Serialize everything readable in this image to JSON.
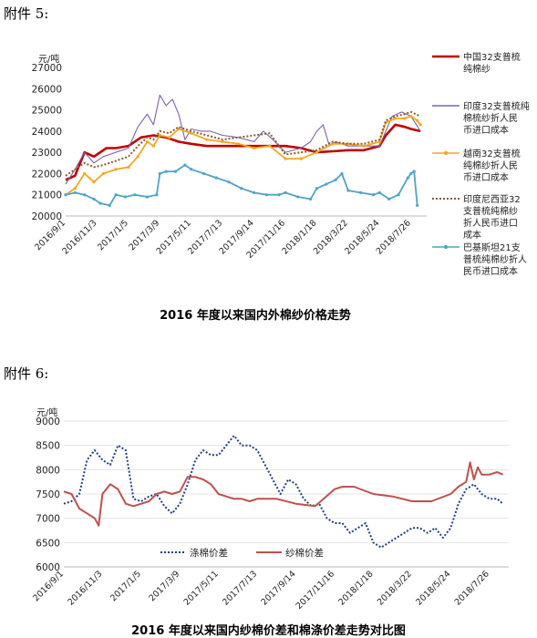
{
  "annex1_label": "附件 5:",
  "annex2_label": "附件 6:",
  "chart_data": [
    {
      "type": "line",
      "title": "2016 年度以来国内外棉纱价格走势",
      "ylabel": "元/吨",
      "ylim": [
        20000,
        27000
      ],
      "yticks": [
        "20000",
        "21000",
        "22000",
        "23000",
        "24000",
        "25000",
        "26000",
        "27000"
      ],
      "xticks": [
        "2016/9/1",
        "2016/11/3",
        "2017/1/5",
        "2017/3/9",
        "2017/5/11",
        "2017/7/13",
        "2017/9/14",
        "2017/11/16",
        "2018/1/18",
        "2018/3/22",
        "2018/5/24",
        "2018/7/26"
      ],
      "legend_position": "right",
      "series": [
        {
          "name": "中国32支普梳纯棉纱",
          "color": "#c00000",
          "style": "solid-thick",
          "x": [
            0,
            0.3,
            0.6,
            0.9,
            1.3,
            1.6,
            2.0,
            2.4,
            2.8,
            3.2,
            3.6,
            4.0,
            4.5,
            5.0,
            5.5,
            6.0,
            6.5,
            7.0,
            7.5,
            8.0,
            8.5,
            9.0,
            9.5,
            10.0,
            10.2,
            10.5,
            10.8,
            11.0,
            11.3
          ],
          "y": [
            21700,
            21900,
            23000,
            22800,
            23200,
            23200,
            23300,
            23700,
            23800,
            23700,
            23500,
            23400,
            23300,
            23300,
            23300,
            23300,
            23300,
            23300,
            23200,
            23000,
            23050,
            23100,
            23100,
            23300,
            23800,
            24300,
            24200,
            24100,
            24000
          ]
        },
        {
          "name": "印度32支普梳纯棉纱折人民币进口成本",
          "color": "#7b62b0",
          "style": "thin",
          "x": [
            0,
            0.3,
            0.6,
            0.9,
            1.2,
            1.6,
            2.0,
            2.3,
            2.6,
            2.8,
            3.0,
            3.2,
            3.4,
            3.6,
            3.8,
            4.0,
            4.3,
            4.6,
            5.0,
            5.5,
            6.0,
            6.3,
            6.6,
            7.0,
            7.5,
            7.8,
            8.0,
            8.2,
            8.4,
            8.6,
            8.8,
            9.0,
            9.5,
            10.0,
            10.2,
            10.4,
            10.7,
            11.0,
            11.3
          ],
          "y": [
            21500,
            22200,
            23000,
            22500,
            22800,
            23000,
            23200,
            24200,
            24800,
            24300,
            25700,
            25200,
            25500,
            24800,
            23600,
            24100,
            24000,
            24000,
            23800,
            23700,
            23500,
            24000,
            23600,
            23000,
            23200,
            23500,
            24000,
            24300,
            23300,
            23500,
            23400,
            23300,
            23300,
            23300,
            24000,
            24700,
            24900,
            24700,
            24000
          ]
        },
        {
          "name": "越南32支普梳纯棉纱折人民币进口成本",
          "color": "#f5a623",
          "style": "marker",
          "x": [
            0,
            0.3,
            0.6,
            0.9,
            1.2,
            1.6,
            2.0,
            2.3,
            2.6,
            2.8,
            3.0,
            3.3,
            3.6,
            4.0,
            4.5,
            5.0,
            5.5,
            6.0,
            6.5,
            7.0,
            7.5,
            8.0,
            8.5,
            9.0,
            9.5,
            10.0,
            10.2,
            10.5,
            10.8,
            11.0,
            11.2,
            11.3
          ],
          "y": [
            21000,
            21300,
            22000,
            21600,
            22000,
            22200,
            22300,
            22800,
            23500,
            23300,
            23800,
            23700,
            24100,
            23900,
            23600,
            23500,
            23400,
            23200,
            23300,
            22700,
            22700,
            23000,
            23400,
            23400,
            23300,
            23500,
            24400,
            24600,
            24600,
            24700,
            24500,
            24300
          ]
        },
        {
          "name": "印度尼西亚32支普梳纯棉纱折人民币进口成本",
          "color": "#8b5a2b",
          "style": "dotted",
          "x": [
            0,
            0.3,
            0.6,
            0.9,
            1.2,
            1.6,
            2.0,
            2.3,
            2.6,
            2.8,
            3.0,
            3.3,
            3.6,
            4.0,
            4.5,
            5.0,
            5.5,
            6.0,
            6.5,
            7.0,
            7.5,
            8.0,
            8.5,
            9.0,
            9.5,
            10.0,
            10.2,
            10.5,
            10.8,
            11.0,
            11.3
          ],
          "y": [
            21900,
            22200,
            22500,
            22300,
            22400,
            22600,
            22800,
            23300,
            23700,
            23600,
            24000,
            23900,
            24200,
            24000,
            23800,
            23600,
            23700,
            23800,
            23900,
            22900,
            23000,
            23100,
            23500,
            23400,
            23400,
            23600,
            24500,
            24700,
            24800,
            24900,
            24700
          ]
        },
        {
          "name": "巴基斯坦21支普梳纯棉纱折人民币进口成本",
          "color": "#4fa3c7",
          "style": "marker",
          "x": [
            0,
            0.3,
            0.6,
            0.9,
            1.1,
            1.4,
            1.6,
            1.9,
            2.2,
            2.6,
            2.9,
            3.0,
            3.2,
            3.5,
            3.8,
            4.0,
            4.4,
            4.8,
            5.2,
            5.6,
            6.0,
            6.4,
            6.8,
            7.0,
            7.4,
            7.8,
            8.0,
            8.3,
            8.6,
            8.8,
            9.0,
            9.4,
            9.8,
            10.0,
            10.3,
            10.6,
            10.9,
            11.0,
            11.1,
            11.2
          ],
          "y": [
            21000,
            21100,
            21000,
            20800,
            20600,
            20500,
            21000,
            20900,
            21000,
            20900,
            21000,
            22000,
            22100,
            22100,
            22400,
            22200,
            22000,
            21800,
            21600,
            21300,
            21100,
            21000,
            21000,
            21100,
            20900,
            20800,
            21300,
            21500,
            21700,
            22000,
            21200,
            21100,
            21000,
            21100,
            20800,
            21000,
            21800,
            22000,
            22100,
            20500
          ]
        }
      ]
    },
    {
      "type": "line",
      "title": "2016 年度以来国内纱棉价差和棉涤价差走势对比图",
      "ylabel": "元/吨",
      "ylim": [
        6000,
        9000
      ],
      "yticks": [
        "6000",
        "6500",
        "7000",
        "7500",
        "8000",
        "8500",
        "9000"
      ],
      "xticks": [
        "2016/9/1",
        "2016/11/3",
        "2017/1/5",
        "2017/3/9",
        "2017/5/11",
        "2017/7/13",
        "2017/9/14",
        "2017/11/16",
        "2018/1/18",
        "2018/3/22",
        "2018/5/24",
        "2018/7/26"
      ],
      "legend_position": "bottom-left",
      "series": [
        {
          "name": "涤棉价差",
          "color": "#1f3d8c",
          "style": "dotted",
          "x": [
            0,
            0.2,
            0.4,
            0.6,
            0.8,
            1.0,
            1.2,
            1.4,
            1.6,
            1.8,
            2.0,
            2.2,
            2.4,
            2.6,
            2.8,
            3.0,
            3.2,
            3.4,
            3.6,
            3.8,
            4.0,
            4.2,
            4.4,
            4.6,
            4.8,
            5.0,
            5.2,
            5.4,
            5.6,
            5.8,
            6.0,
            6.2,
            6.4,
            6.6,
            6.8,
            7.0,
            7.2,
            7.4,
            7.6,
            7.8,
            8.0,
            8.2,
            8.4,
            8.6,
            8.8,
            9.0,
            9.2,
            9.4,
            9.6,
            9.8,
            10.0,
            10.2,
            10.4,
            10.6,
            10.8,
            11.0,
            11.2,
            11.35
          ],
          "y": [
            7300,
            7350,
            7500,
            8200,
            8400,
            8200,
            8100,
            8500,
            8400,
            7400,
            7350,
            7450,
            7500,
            7250,
            7100,
            7300,
            7700,
            8200,
            8400,
            8300,
            8300,
            8500,
            8700,
            8500,
            8500,
            8400,
            8100,
            7800,
            7500,
            7800,
            7700,
            7400,
            7250,
            7300,
            7000,
            6900,
            6900,
            6700,
            6800,
            6900,
            6500,
            6400,
            6500,
            6600,
            6700,
            6800,
            6800,
            6700,
            6800,
            6600,
            6800,
            7300,
            7600,
            7700,
            7500,
            7400,
            7400,
            7300
          ]
        },
        {
          "name": "纱棉价差",
          "color": "#c0504d",
          "style": "solid",
          "x": [
            0,
            0.2,
            0.4,
            0.6,
            0.8,
            0.9,
            1.0,
            1.2,
            1.4,
            1.6,
            1.8,
            2.0,
            2.2,
            2.4,
            2.6,
            2.8,
            3.0,
            3.2,
            3.4,
            3.6,
            3.8,
            4.0,
            4.2,
            4.4,
            4.6,
            4.8,
            5.0,
            5.5,
            6.0,
            6.5,
            7.0,
            7.2,
            7.5,
            8.0,
            8.5,
            9.0,
            9.5,
            10.0,
            10.2,
            10.4,
            10.5,
            10.6,
            10.7,
            10.8,
            11.0,
            11.2,
            11.35
          ],
          "y": [
            7550,
            7500,
            7200,
            7100,
            7000,
            6850,
            7500,
            7700,
            7600,
            7300,
            7250,
            7300,
            7350,
            7500,
            7550,
            7500,
            7550,
            7850,
            7850,
            7800,
            7700,
            7500,
            7450,
            7400,
            7400,
            7350,
            7400,
            7400,
            7300,
            7250,
            7600,
            7650,
            7650,
            7500,
            7450,
            7350,
            7350,
            7500,
            7650,
            7750,
            8150,
            7800,
            8050,
            7900,
            7900,
            7950,
            7900
          ]
        }
      ]
    }
  ]
}
